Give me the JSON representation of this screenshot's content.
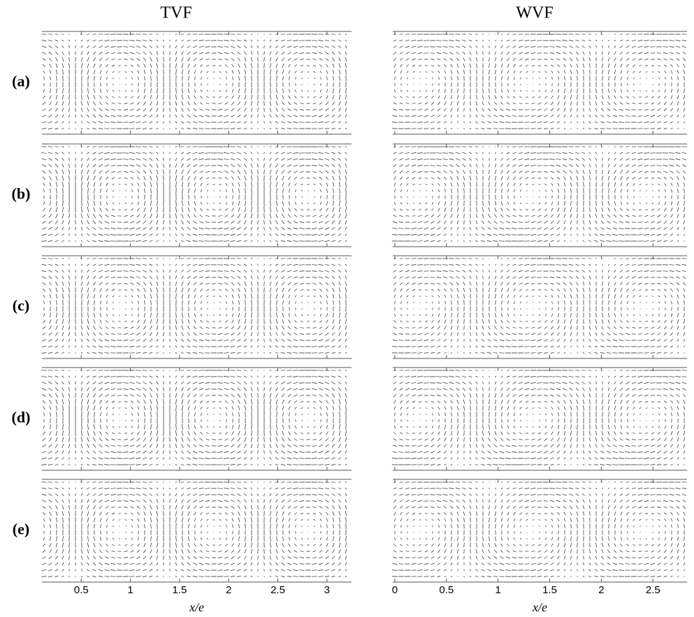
{
  "columns": [
    {
      "title": "TVF",
      "xlim": [
        0.1,
        3.25
      ],
      "xticks": [
        0.5,
        1,
        1.5,
        2,
        2.5,
        3
      ],
      "xlabel": "x/e"
    },
    {
      "title": "WVF",
      "xlim": [
        -0.02,
        2.83
      ],
      "xticks": [
        0,
        0.5,
        1,
        1.5,
        2,
        2.5
      ],
      "xlabel": "x/e"
    }
  ],
  "rows": [
    "(a)",
    "(b)",
    "(c)",
    "(d)",
    "(e)"
  ]
}
